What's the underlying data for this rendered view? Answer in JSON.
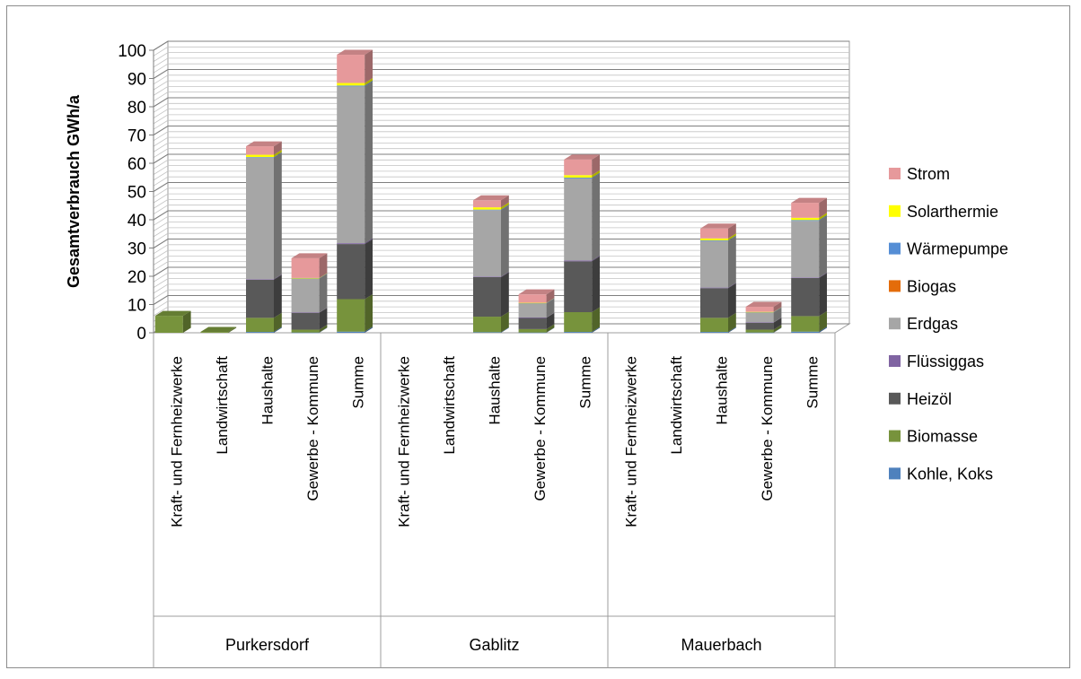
{
  "chart_data": {
    "type": "bar",
    "stacked": true,
    "three_d": true,
    "ylabel": "Gesamtverbrauch  GWh/a",
    "ylim": [
      0,
      100
    ],
    "y_ticks": [
      "0",
      "10",
      "20",
      "30",
      "40",
      "50",
      "60",
      "70",
      "80",
      "90",
      "100"
    ],
    "grid": true,
    "legend_position": "right",
    "groups": [
      {
        "name": "Purkersdorf",
        "categories": [
          "Kraft- und Fernheizwerke",
          "Landwirtschaft",
          "Haushalte",
          "Gewerbe - Kommune",
          "Summe"
        ]
      },
      {
        "name": "Gablitz",
        "categories": [
          "Kraft- und Fernheizwerke",
          "Landwirtschaft",
          "Haushalte",
          "Gewerbe - Kommune",
          "Summe"
        ]
      },
      {
        "name": "Mauerbach",
        "categories": [
          "Kraft- und Fernheizwerke",
          "Landwirtschaft",
          "Haushalte",
          "Gewerbe - Kommune",
          "Summe"
        ]
      }
    ],
    "series": [
      {
        "name": "Kohle, Koks",
        "color": "#4f81bd",
        "values": [
          0,
          0,
          0.3,
          0.1,
          0.4,
          0,
          0,
          0.2,
          0.1,
          0.3,
          0,
          0,
          0.3,
          0.1,
          0.4
        ]
      },
      {
        "name": "Biomasse",
        "color": "#77933c",
        "values": [
          6,
          0.3,
          5,
          1,
          11.5,
          0,
          0,
          5.5,
          1.2,
          7,
          0,
          0,
          5,
          1,
          5.5
        ]
      },
      {
        "name": "Heizöl",
        "color": "#595959",
        "values": [
          0,
          0,
          13.5,
          6,
          19.5,
          0,
          0,
          14,
          4,
          18,
          0,
          0,
          10.5,
          2.5,
          13.5
        ]
      },
      {
        "name": "Flüssiggas",
        "color": "#8064a2",
        "values": [
          0,
          0,
          0.2,
          0.1,
          0.3,
          0,
          0,
          0.2,
          0.1,
          0.3,
          0,
          0,
          0.2,
          0.1,
          0.2
        ]
      },
      {
        "name": "Erdgas",
        "color": "#a6a6a6",
        "values": [
          0,
          0,
          43,
          12,
          55.5,
          0,
          0,
          23.5,
          5,
          29,
          0,
          0,
          16.5,
          3.5,
          20
        ]
      },
      {
        "name": "Biogas",
        "color": "#e46c0a",
        "values": [
          0,
          0,
          0,
          0,
          0,
          0,
          0,
          0,
          0,
          0,
          0,
          0,
          0,
          0,
          0
        ]
      },
      {
        "name": "Wärmepumpe",
        "color": "#558ed5",
        "values": [
          0,
          0,
          0.2,
          0.1,
          0.3,
          0,
          0,
          0.2,
          0.1,
          0.3,
          0,
          0,
          0.2,
          0.1,
          0.3
        ]
      },
      {
        "name": "Solarthermie",
        "color": "#ffff00",
        "values": [
          0,
          0,
          0.8,
          0.1,
          0.9,
          0,
          0,
          0.8,
          0.1,
          0.9,
          0,
          0,
          0.7,
          0.1,
          0.8
        ]
      },
      {
        "name": "Strom",
        "color": "#e6999b",
        "values": [
          0,
          0,
          3,
          7,
          10,
          0,
          0,
          2.5,
          3,
          5.5,
          0,
          0,
          3.5,
          1.8,
          5.3
        ]
      }
    ]
  }
}
